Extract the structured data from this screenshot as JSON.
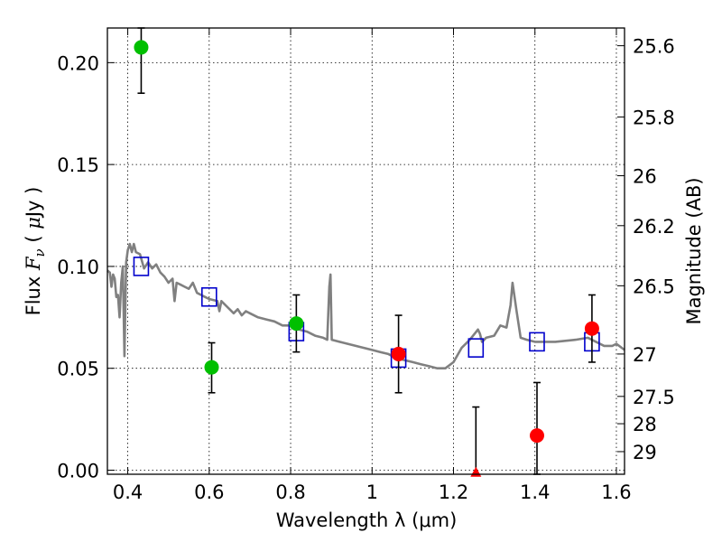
{
  "chart_data": {
    "type": "scatter",
    "xlabel": "Wavelength  λ (μm)",
    "ylabel": "Flux  F_ν  ( μJy )",
    "ylabel_parts": {
      "prefix": "Flux  ",
      "symbol": "F",
      "subscript": "ν",
      "open": "  ( ",
      "mu": "μ",
      "unit": "Jy )"
    },
    "y2label": "Magnitude (AB)",
    "xlim": [
      0.35,
      1.62
    ],
    "ylim": [
      -0.002,
      0.217
    ],
    "grid": true,
    "x_ticks": [
      0.4,
      0.6,
      0.8,
      1.0,
      1.2,
      1.4,
      1.6
    ],
    "x_tick_labels": [
      "0.4",
      "0.6",
      "0.8",
      "1",
      "1.2",
      "1.4",
      "1.6"
    ],
    "y_ticks": [
      0.0,
      0.05,
      0.1,
      0.15,
      0.2
    ],
    "y_tick_labels": [
      "0.00",
      "0.05",
      "0.10",
      "0.15",
      "0.20"
    ],
    "y2_ticks": [
      {
        "flux": 0.2083,
        "label": "25.6"
      },
      {
        "flux": 0.1733,
        "label": "25.8"
      },
      {
        "flux": 0.1445,
        "label": "26"
      },
      {
        "flux": 0.12,
        "label": "26.2"
      },
      {
        "flux": 0.0905,
        "label": "26.5"
      },
      {
        "flux": 0.057,
        "label": "27"
      },
      {
        "flux": 0.0362,
        "label": "27.5"
      },
      {
        "flux": 0.0228,
        "label": "28"
      },
      {
        "flux": 0.0091,
        "label": "29"
      }
    ],
    "series": [
      {
        "kind": "model-spectrum",
        "color": "#808080",
        "points": [
          [
            0.35,
            0.098
          ],
          [
            0.356,
            0.097
          ],
          [
            0.36,
            0.09
          ],
          [
            0.364,
            0.096
          ],
          [
            0.368,
            0.094
          ],
          [
            0.372,
            0.085
          ],
          [
            0.376,
            0.086
          ],
          [
            0.38,
            0.075
          ],
          [
            0.384,
            0.092
          ],
          [
            0.388,
            0.1
          ],
          [
            0.392,
            0.056
          ],
          [
            0.396,
            0.102
          ],
          [
            0.4,
            0.108
          ],
          [
            0.405,
            0.111
          ],
          [
            0.41,
            0.107
          ],
          [
            0.415,
            0.111
          ],
          [
            0.42,
            0.107
          ],
          [
            0.43,
            0.106
          ],
          [
            0.44,
            0.099
          ],
          [
            0.45,
            0.102
          ],
          [
            0.46,
            0.099
          ],
          [
            0.47,
            0.101
          ],
          [
            0.48,
            0.097
          ],
          [
            0.49,
            0.095
          ],
          [
            0.5,
            0.092
          ],
          [
            0.51,
            0.094
          ],
          [
            0.515,
            0.083
          ],
          [
            0.52,
            0.092
          ],
          [
            0.53,
            0.091
          ],
          [
            0.54,
            0.09
          ],
          [
            0.55,
            0.089
          ],
          [
            0.56,
            0.092
          ],
          [
            0.57,
            0.087
          ],
          [
            0.58,
            0.086
          ],
          [
            0.59,
            0.085
          ],
          [
            0.6,
            0.084
          ],
          [
            0.62,
            0.083
          ],
          [
            0.625,
            0.078
          ],
          [
            0.63,
            0.083
          ],
          [
            0.65,
            0.079
          ],
          [
            0.66,
            0.077
          ],
          [
            0.67,
            0.079
          ],
          [
            0.68,
            0.076
          ],
          [
            0.69,
            0.078
          ],
          [
            0.7,
            0.077
          ],
          [
            0.72,
            0.075
          ],
          [
            0.74,
            0.074
          ],
          [
            0.76,
            0.073
          ],
          [
            0.78,
            0.071
          ],
          [
            0.8,
            0.071
          ],
          [
            0.82,
            0.069
          ],
          [
            0.84,
            0.068
          ],
          [
            0.86,
            0.066
          ],
          [
            0.88,
            0.065
          ],
          [
            0.89,
            0.064
          ],
          [
            0.895,
            0.09
          ],
          [
            0.898,
            0.096
          ],
          [
            0.901,
            0.064
          ],
          [
            0.92,
            0.063
          ],
          [
            0.94,
            0.062
          ],
          [
            0.96,
            0.061
          ],
          [
            0.98,
            0.06
          ],
          [
            1.0,
            0.059
          ],
          [
            1.02,
            0.058
          ],
          [
            1.04,
            0.057
          ],
          [
            1.06,
            0.055
          ],
          [
            1.08,
            0.054
          ],
          [
            1.1,
            0.053
          ],
          [
            1.12,
            0.052
          ],
          [
            1.14,
            0.051
          ],
          [
            1.16,
            0.05
          ],
          [
            1.18,
            0.05
          ],
          [
            1.2,
            0.053
          ],
          [
            1.22,
            0.06
          ],
          [
            1.24,
            0.064
          ],
          [
            1.26,
            0.069
          ],
          [
            1.265,
            0.067
          ],
          [
            1.27,
            0.063
          ],
          [
            1.28,
            0.065
          ],
          [
            1.3,
            0.066
          ],
          [
            1.315,
            0.071
          ],
          [
            1.33,
            0.07
          ],
          [
            1.34,
            0.081
          ],
          [
            1.345,
            0.092
          ],
          [
            1.355,
            0.078
          ],
          [
            1.365,
            0.065
          ],
          [
            1.38,
            0.064
          ],
          [
            1.4,
            0.063
          ],
          [
            1.45,
            0.063
          ],
          [
            1.5,
            0.064
          ],
          [
            1.53,
            0.065
          ],
          [
            1.55,
            0.063
          ],
          [
            1.57,
            0.061
          ],
          [
            1.59,
            0.061
          ],
          [
            1.6,
            0.062
          ],
          [
            1.62,
            0.059
          ]
        ]
      },
      {
        "kind": "model-photometry",
        "marker": "open-square",
        "color": "#0000cc",
        "points": [
          [
            0.433,
            0.1
          ],
          [
            0.6,
            0.085
          ],
          [
            0.814,
            0.068
          ],
          [
            1.065,
            0.055
          ],
          [
            1.255,
            0.06
          ],
          [
            1.405,
            0.063
          ],
          [
            1.54,
            0.063
          ]
        ]
      },
      {
        "kind": "observed-green",
        "marker": "filled-circle",
        "color": "#00bf00",
        "points": [
          {
            "x": 0.433,
            "y": 0.2075,
            "err_low": 0.185,
            "err_high": 0.217
          },
          {
            "x": 0.606,
            "y": 0.0505,
            "err_low": 0.038,
            "err_high": 0.0625
          },
          {
            "x": 0.814,
            "y": 0.072,
            "err_low": 0.058,
            "err_high": 0.086
          }
        ]
      },
      {
        "kind": "observed-red",
        "marker": "filled-circle",
        "color": "#ff0000",
        "points": [
          {
            "x": 1.065,
            "y": 0.057,
            "err_low": 0.038,
            "err_high": 0.076
          },
          {
            "x": 1.405,
            "y": 0.017,
            "err_low": -0.002,
            "err_high": 0.043
          },
          {
            "x": 1.54,
            "y": 0.0695,
            "err_low": 0.053,
            "err_high": 0.086
          }
        ]
      },
      {
        "kind": "observed-upper-limit",
        "marker": "triangle",
        "color": "#ff0000",
        "points": [
          {
            "x": 1.255,
            "y": -0.001,
            "err_low": -0.002,
            "err_high": 0.031
          }
        ]
      }
    ]
  }
}
